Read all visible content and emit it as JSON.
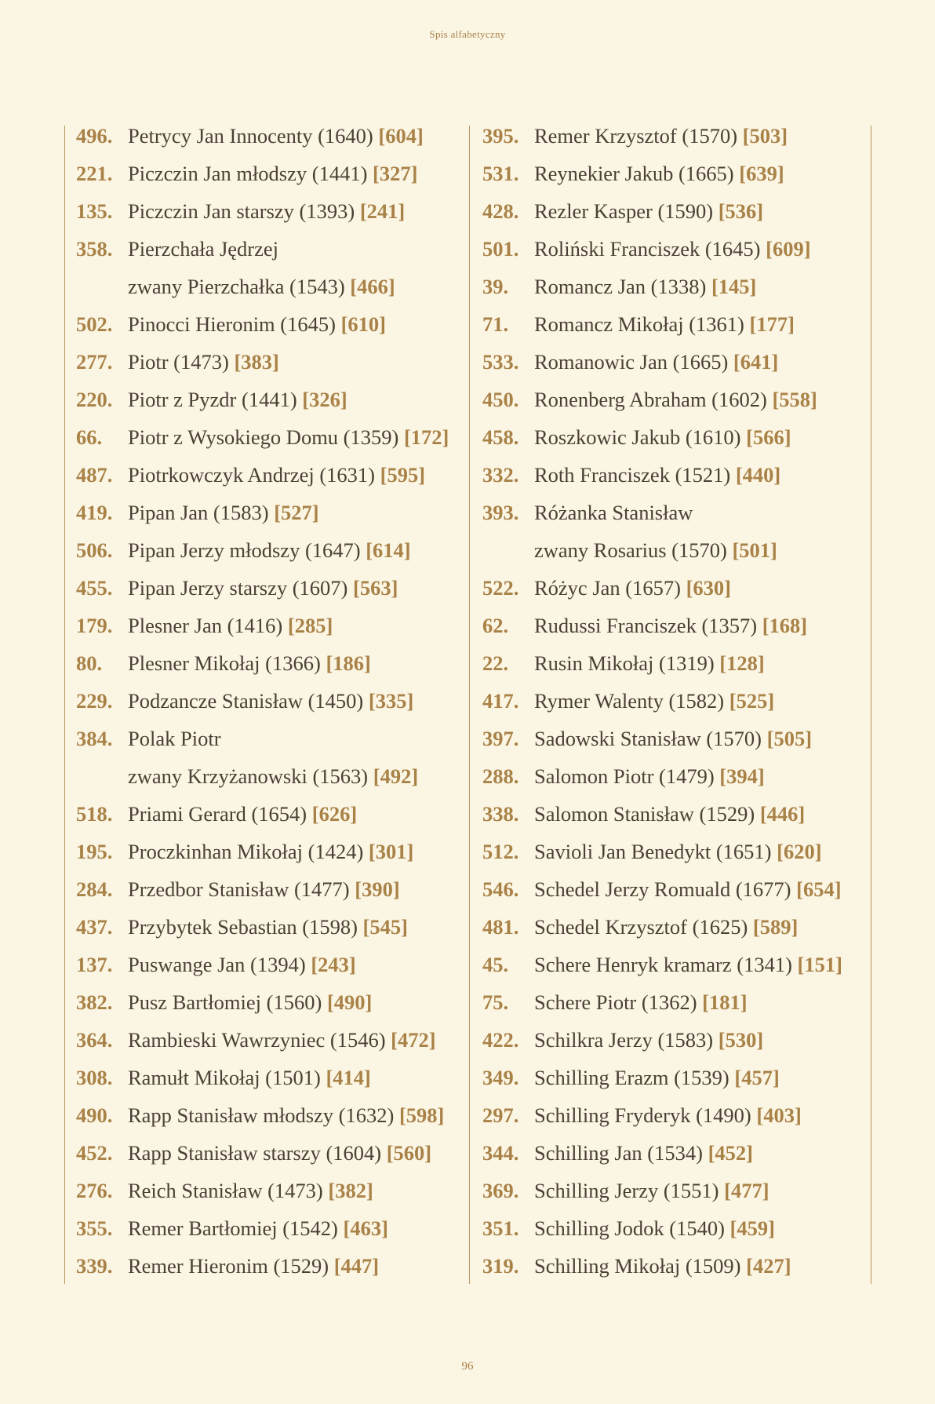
{
  "header": "Spis alfabetyczny",
  "page_number": "96",
  "colors": {
    "background": "#fbf5e4",
    "accent": "#a98247",
    "text": "#4b4036"
  },
  "left_column": [
    {
      "num": "496.",
      "name": "Petrycy Jan Innocenty (1640)",
      "ref": "[604]"
    },
    {
      "num": "221.",
      "name": "Piczczin Jan młodszy (1441)",
      "ref": "[327]"
    },
    {
      "num": "135.",
      "name": "Piczczin Jan starszy (1393)",
      "ref": "[241]"
    },
    {
      "num": "358.",
      "name": "Pierzchała Jędrzej",
      "ref": ""
    },
    {
      "num": "",
      "name": "zwany Pierzchałka (1543)",
      "ref": "[466]"
    },
    {
      "num": "502.",
      "name": "Pinocci Hieronim (1645)",
      "ref": "[610]"
    },
    {
      "num": "277.",
      "name": "Piotr (1473)",
      "ref": "[383]"
    },
    {
      "num": "220.",
      "name": "Piotr z Pyzdr (1441)",
      "ref": "[326]"
    },
    {
      "num": "66.",
      "name": "Piotr z Wysokiego Domu (1359)",
      "ref": "[172]"
    },
    {
      "num": "487.",
      "name": "Piotrkowczyk Andrzej (1631)",
      "ref": "[595]"
    },
    {
      "num": "419.",
      "name": "Pipan Jan (1583)",
      "ref": "[527]"
    },
    {
      "num": "506.",
      "name": "Pipan Jerzy młodszy (1647)",
      "ref": "[614]"
    },
    {
      "num": "455.",
      "name": "Pipan Jerzy starszy (1607)",
      "ref": "[563]"
    },
    {
      "num": "179.",
      "name": "Plesner Jan (1416)",
      "ref": "[285]"
    },
    {
      "num": "80.",
      "name": "Plesner Mikołaj (1366)",
      "ref": "[186]"
    },
    {
      "num": "229.",
      "name": "Podzancze Stanisław (1450)",
      "ref": "[335]"
    },
    {
      "num": "384.",
      "name": "Polak Piotr",
      "ref": ""
    },
    {
      "num": "",
      "name": "zwany Krzyżanowski (1563)",
      "ref": "[492]"
    },
    {
      "num": "518.",
      "name": "Priami Gerard (1654)",
      "ref": "[626]"
    },
    {
      "num": "195.",
      "name": "Proczkinhan Mikołaj (1424)",
      "ref": "[301]"
    },
    {
      "num": "284.",
      "name": "Przedbor Stanisław (1477)",
      "ref": "[390]"
    },
    {
      "num": "437.",
      "name": "Przybytek Sebastian (1598)",
      "ref": "[545]"
    },
    {
      "num": "137.",
      "name": "Puswange Jan (1394)",
      "ref": "[243]"
    },
    {
      "num": "382.",
      "name": "Pusz Bartłomiej (1560)",
      "ref": "[490]"
    },
    {
      "num": "364.",
      "name": "Rambieski Wawrzyniec (1546)",
      "ref": "[472]"
    },
    {
      "num": "308.",
      "name": "Ramułt Mikołaj (1501)",
      "ref": "[414]"
    },
    {
      "num": "490.",
      "name": "Rapp Stanisław młodszy (1632)",
      "ref": "[598]"
    },
    {
      "num": "452.",
      "name": "Rapp Stanisław starszy (1604)",
      "ref": "[560]"
    },
    {
      "num": "276.",
      "name": "Reich Stanisław (1473)",
      "ref": "[382]"
    },
    {
      "num": "355.",
      "name": "Remer Bartłomiej (1542)",
      "ref": "[463]"
    },
    {
      "num": "339.",
      "name": "Remer Hieronim (1529)",
      "ref": "[447]"
    }
  ],
  "right_column": [
    {
      "num": "395.",
      "name": "Remer Krzysztof (1570)",
      "ref": "[503]"
    },
    {
      "num": "531.",
      "name": "Reynekier Jakub (1665)",
      "ref": "[639]"
    },
    {
      "num": "428.",
      "name": "Rezler Kasper (1590)",
      "ref": "[536]"
    },
    {
      "num": "501.",
      "name": "Roliński Franciszek (1645)",
      "ref": "[609]"
    },
    {
      "num": "39.",
      "name": "Romancz Jan (1338)",
      "ref": "[145]"
    },
    {
      "num": "71.",
      "name": "Romancz Mikołaj (1361)",
      "ref": "[177]"
    },
    {
      "num": "533.",
      "name": "Romanowic Jan (1665)",
      "ref": "[641]"
    },
    {
      "num": "450.",
      "name": "Ronenberg Abraham (1602)",
      "ref": "[558]"
    },
    {
      "num": "458.",
      "name": "Roszkowic Jakub (1610)",
      "ref": "[566]"
    },
    {
      "num": "332.",
      "name": "Roth Franciszek (1521)",
      "ref": "[440]"
    },
    {
      "num": "393.",
      "name": "Różanka Stanisław",
      "ref": ""
    },
    {
      "num": "",
      "name": "zwany Rosarius (1570)",
      "ref": "[501]"
    },
    {
      "num": "522.",
      "name": "Różyc Jan (1657)",
      "ref": "[630]"
    },
    {
      "num": "62.",
      "name": "Rudussi Franciszek (1357)",
      "ref": "[168]"
    },
    {
      "num": "22.",
      "name": "Rusin Mikołaj (1319)",
      "ref": "[128]"
    },
    {
      "num": "417.",
      "name": "Rymer Walenty (1582)",
      "ref": "[525]"
    },
    {
      "num": "397.",
      "name": "Sadowski Stanisław (1570)",
      "ref": "[505]"
    },
    {
      "num": "288.",
      "name": "Salomon Piotr (1479)",
      "ref": "[394]"
    },
    {
      "num": "338.",
      "name": "Salomon Stanisław (1529)",
      "ref": "[446]"
    },
    {
      "num": "512.",
      "name": "Savioli Jan Benedykt (1651)",
      "ref": "[620]"
    },
    {
      "num": "546.",
      "name": "Schedel Jerzy Romuald (1677)",
      "ref": "[654]"
    },
    {
      "num": "481.",
      "name": "Schedel Krzysztof (1625)",
      "ref": "[589]"
    },
    {
      "num": "45.",
      "name": "Schere Henryk kramarz (1341)",
      "ref": "[151]"
    },
    {
      "num": "75.",
      "name": "Schere Piotr (1362)",
      "ref": "[181]"
    },
    {
      "num": "422.",
      "name": "Schilkra Jerzy (1583)",
      "ref": "[530]"
    },
    {
      "num": "349.",
      "name": "Schilling Erazm (1539)",
      "ref": "[457]"
    },
    {
      "num": "297.",
      "name": "Schilling Fryderyk (1490)",
      "ref": "[403]"
    },
    {
      "num": "344.",
      "name": "Schilling Jan (1534)",
      "ref": "[452]"
    },
    {
      "num": "369.",
      "name": "Schilling Jerzy (1551)",
      "ref": "[477]"
    },
    {
      "num": "351.",
      "name": "Schilling Jodok (1540)",
      "ref": "[459]"
    },
    {
      "num": "319.",
      "name": "Schilling Mikołaj (1509)",
      "ref": "[427]"
    }
  ]
}
